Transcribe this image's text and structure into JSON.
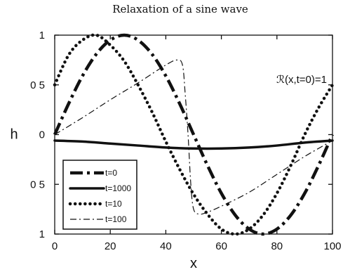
{
  "chart_data": {
    "type": "line",
    "title": "Relaxation of a sine wave",
    "xlabel": "x",
    "ylabel": "h",
    "xlim": [
      0,
      100
    ],
    "ylim": [
      -1,
      1
    ],
    "x_ticks": [
      0,
      20,
      40,
      60,
      80,
      100
    ],
    "x_tick_labels": [
      "0",
      "20",
      "40",
      "60",
      "80",
      "100"
    ],
    "y_ticks": [
      1,
      0.5,
      0,
      -0.5,
      -1
    ],
    "y_tick_labels": [
      "1",
      "0 5",
      "0",
      "0 5",
      "1"
    ],
    "grid": false,
    "legend_position": "bottom-left",
    "annotation": "ℛ(x,t=0)=1",
    "series": [
      {
        "name": "t=0",
        "style": "thick-dashdot",
        "color": "#111111",
        "x": [
          0,
          5,
          10,
          15,
          20,
          25,
          30,
          35,
          40,
          45,
          50,
          55,
          60,
          65,
          70,
          75,
          80,
          85,
          90,
          95,
          100
        ],
        "y": [
          0.0,
          0.31,
          0.59,
          0.81,
          0.95,
          1.0,
          0.95,
          0.81,
          0.59,
          0.31,
          0.0,
          -0.31,
          -0.59,
          -0.81,
          -0.95,
          -1.0,
          -0.95,
          -0.81,
          -0.59,
          -0.31,
          0.0
        ]
      },
      {
        "name": "t=1000",
        "style": "thick-solid",
        "color": "#111111",
        "x": [
          0,
          10,
          20,
          30,
          40,
          50,
          60,
          70,
          80,
          90,
          100
        ],
        "y": [
          -0.06,
          -0.07,
          -0.09,
          -0.11,
          -0.13,
          -0.14,
          -0.14,
          -0.13,
          -0.11,
          -0.08,
          -0.06
        ]
      },
      {
        "name": "t=10",
        "style": "dotted",
        "color": "#111111",
        "x": [
          0,
          5,
          10,
          15,
          20,
          25,
          30,
          35,
          40,
          45,
          50,
          55,
          60,
          65,
          70,
          75,
          80,
          85,
          90,
          95,
          100
        ],
        "y": [
          0.5,
          0.8,
          0.95,
          1.0,
          0.9,
          0.74,
          0.5,
          0.23,
          -0.07,
          -0.35,
          -0.6,
          -0.8,
          -0.95,
          -1.0,
          -0.95,
          -0.81,
          -0.59,
          -0.31,
          0.0,
          0.27,
          0.5
        ]
      },
      {
        "name": "t=100",
        "style": "thin-dashdot",
        "color": "#111111",
        "x": [
          0,
          10,
          20,
          30,
          40,
          44,
          46,
          47,
          48,
          49,
          50,
          52,
          55,
          60,
          70,
          80,
          90,
          100
        ],
        "y": [
          0.0,
          0.17,
          0.35,
          0.52,
          0.7,
          0.75,
          0.7,
          0.4,
          0.0,
          -0.5,
          -0.75,
          -0.8,
          -0.78,
          -0.72,
          -0.58,
          -0.4,
          -0.22,
          -0.06
        ]
      }
    ]
  }
}
